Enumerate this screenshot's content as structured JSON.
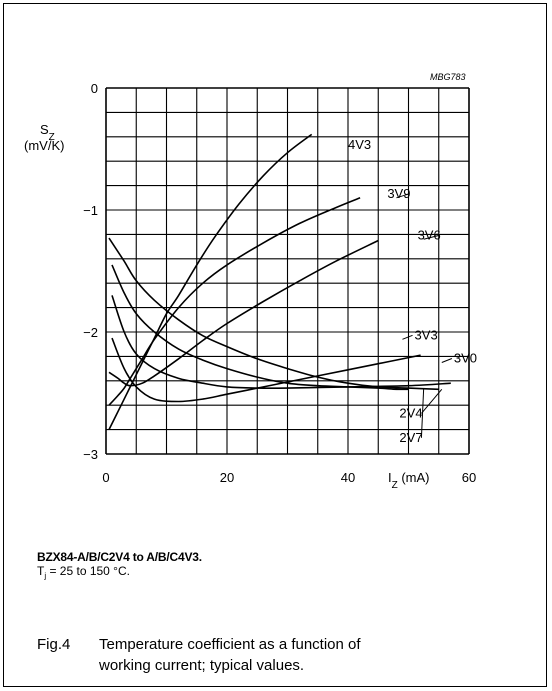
{
  "figure_ref": "MBG783",
  "note": {
    "part": "BZX84-A/B/C2V4 to A/B/C4V3.",
    "temp_prefix": "T",
    "temp_sub": "j",
    "temp_rest": " = 25 to 150 °C."
  },
  "caption": {
    "number": "Fig.4",
    "line1": "Temperature coefficient as a function of",
    "line2": "working current; typical values."
  },
  "chart_data": {
    "type": "line",
    "title": "",
    "xlabel_main": "I",
    "xlabel_sub": "Z",
    "xlabel_unit": " (mA)",
    "ylabel_main": "S",
    "ylabel_sub": "Z",
    "ylabel_unit": "(mV/K)",
    "xlim": [
      0,
      60
    ],
    "ylim": [
      -3,
      0
    ],
    "x_ticks": [
      0,
      20,
      40,
      60
    ],
    "x_tick_labels": [
      "0",
      "20",
      "40",
      "60"
    ],
    "y_ticks": [
      0,
      -1,
      -2,
      -3
    ],
    "y_tick_labels": [
      "0",
      "−1",
      "−2",
      "−3"
    ],
    "grid": true,
    "series": [
      {
        "name": "4V3",
        "x": [
          0.5,
          2,
          4,
          6,
          8,
          10,
          12,
          15,
          18,
          22,
          26,
          30,
          34
        ],
        "y": [
          -2.8,
          -2.65,
          -2.45,
          -2.25,
          -2.05,
          -1.85,
          -1.7,
          -1.45,
          -1.22,
          -0.95,
          -0.72,
          -0.53,
          -0.38
        ]
      },
      {
        "name": "3V9",
        "x": [
          0.5,
          2,
          3,
          4,
          6,
          8,
          12,
          16,
          20,
          26,
          32,
          38,
          42
        ],
        "y": [
          -2.6,
          -2.52,
          -2.46,
          -2.38,
          -2.22,
          -2.06,
          -1.8,
          -1.6,
          -1.45,
          -1.27,
          -1.11,
          -0.98,
          -0.9
        ]
      },
      {
        "name": "3V6",
        "x": [
          0.5,
          2,
          3,
          4,
          6,
          8,
          12,
          16,
          20,
          26,
          32,
          38,
          45
        ],
        "y": [
          -2.33,
          -2.38,
          -2.42,
          -2.44,
          -2.42,
          -2.36,
          -2.22,
          -2.07,
          -1.93,
          -1.75,
          -1.58,
          -1.42,
          -1.25
        ]
      },
      {
        "name": "3V3",
        "x": [
          1,
          3,
          5,
          8,
          12,
          16,
          20,
          25,
          30,
          35,
          40,
          45,
          50,
          52
        ],
        "y": [
          -2.05,
          -2.3,
          -2.45,
          -2.55,
          -2.57,
          -2.55,
          -2.51,
          -2.46,
          -2.41,
          -2.36,
          -2.31,
          -2.26,
          -2.21,
          -2.19
        ]
      },
      {
        "name": "3V0",
        "x": [
          1,
          3,
          5,
          8,
          12,
          16,
          20,
          25,
          30,
          40,
          50,
          57
        ],
        "y": [
          -1.7,
          -2.0,
          -2.18,
          -2.3,
          -2.38,
          -2.42,
          -2.45,
          -2.46,
          -2.46,
          -2.45,
          -2.44,
          -2.42
        ]
      },
      {
        "name": "2V7",
        "x": [
          1,
          3,
          5,
          8,
          12,
          16,
          20,
          25,
          30,
          35,
          40,
          45,
          48,
          50
        ],
        "y": [
          -1.45,
          -1.68,
          -1.85,
          -2.0,
          -2.14,
          -2.23,
          -2.3,
          -2.37,
          -2.42,
          -2.44,
          -2.45,
          -2.46,
          -2.47,
          -2.47
        ]
      },
      {
        "name": "2V4",
        "x": [
          0.5,
          3,
          5,
          8,
          12,
          16,
          20,
          25,
          30,
          35,
          40,
          45,
          50,
          55
        ],
        "y": [
          -1.23,
          -1.42,
          -1.58,
          -1.74,
          -1.9,
          -2.03,
          -2.12,
          -2.22,
          -2.3,
          -2.37,
          -2.42,
          -2.45,
          -2.46,
          -2.47
        ]
      }
    ],
    "annotations": [
      {
        "label": "4V3",
        "series": "4V3",
        "x": 40,
        "y": -0.5,
        "tx": 40,
        "ty": -0.33
      },
      {
        "label": "3V9",
        "series": "3V9",
        "x": 46.5,
        "y": -0.9,
        "tx": 48,
        "ty": -0.9
      },
      {
        "label": "3V6",
        "series": "3V6",
        "x": 51.5,
        "y": -1.24,
        "tx": 52.5,
        "ty": -1.24
      },
      {
        "label": "3V3",
        "series": "3V3",
        "x": 51,
        "y": -2.06,
        "tx": 49,
        "ty": -2.06
      },
      {
        "label": "3V0",
        "series": "3V0",
        "x": 57.5,
        "y": -2.25,
        "tx": 55.5,
        "ty": -2.25
      },
      {
        "label": "2V4",
        "series": "2V4",
        "x": 48.5,
        "y": -2.7,
        "tx": 55.5,
        "ty": -2.47
      },
      {
        "label": "2V7",
        "series": "2V7",
        "x": 48.5,
        "y": -2.9,
        "tx": 52.5,
        "ty": -2.47
      }
    ]
  }
}
